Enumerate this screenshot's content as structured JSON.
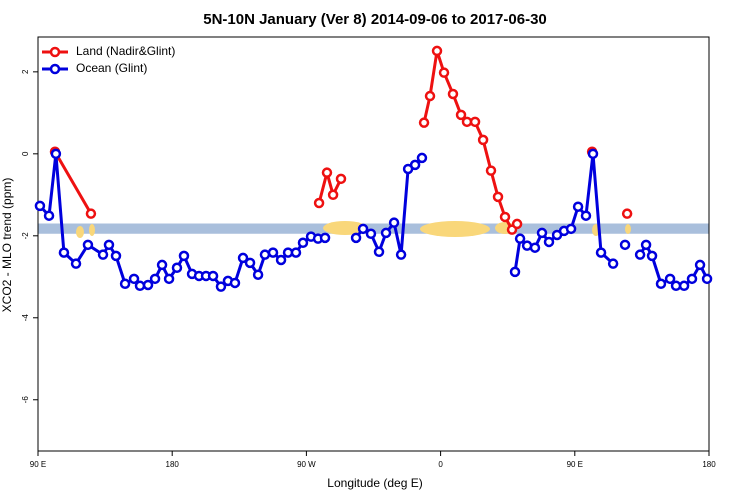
{
  "chart_data": {
    "type": "line",
    "title": "5N-10N January (Ver 8)   2014-09-06 to 2017-06-30",
    "xlabel": "Longitude (deg E)",
    "ylabel": "XCO2 - MLO trend (ppm)",
    "xlim": [
      90,
      540
    ],
    "ylim": [
      -7.25,
      2.85
    ],
    "xticks": [
      {
        "value": 90,
        "label": "90 E"
      },
      180,
      {
        "value": 270,
        "label": "90 W"
      },
      {
        "value": 360,
        "label": "0"
      },
      {
        "value": 450,
        "label": "90 E"
      },
      {
        "value": 540,
        "label": "180"
      }
    ],
    "yticks": [
      2,
      0,
      -2,
      -4,
      -6
    ],
    "legend": "top-left",
    "band": {
      "ylim": [
        -1.95,
        -1.7
      ],
      "color": "#a9bfdc"
    },
    "series": [
      {
        "name": "Land (Nadir&Glint)",
        "color": "#ee1111",
        "x": [
          101.4,
          125.5,
          null,
          278.5,
          283.8,
          287.9,
          293.2,
          null,
          348.9,
          352.9,
          357.6,
          362.3,
          368.3,
          373.7,
          377.7,
          383.1,
          388.5,
          393.8,
          398.5,
          403.2,
          407.9,
          411.3,
          null,
          461.6,
          null,
          485.1
        ],
        "values": [
          0.05,
          -1.46,
          null,
          -1.2,
          -0.46,
          -1.0,
          -0.61,
          null,
          0.76,
          1.41,
          2.51,
          1.98,
          1.46,
          0.95,
          0.78,
          0.78,
          0.34,
          -0.41,
          -1.05,
          -1.54,
          -1.85,
          -1.71,
          null,
          0.05,
          null,
          -1.46
        ]
      },
      {
        "name": "Ocean (Glint)",
        "color": "#0000dd",
        "x": [
          91.3,
          97.4,
          102,
          107.4,
          115.5,
          123.5,
          133.6,
          137.6,
          142.3,
          148.4,
          154.4,
          158.4,
          163.8,
          168.5,
          173.2,
          177.9,
          183.2,
          187.9,
          193.3,
          198,
          202.7,
          207.4,
          212.7,
          217.4,
          222.1,
          227.5,
          232.2,
          237.6,
          242.2,
          247.6,
          253,
          257.7,
          263,
          267.7,
          273.1,
          277.8,
          282.5,
          null,
          303.3,
          308,
          313.3,
          318.7,
          323.4,
          328.8,
          333.5,
          338.2,
          342.9,
          347.5,
          null,
          409.9,
          413.3,
          418,
          423.3,
          428,
          432.7,
          438.1,
          442.8,
          447.5,
          452.2,
          457.5,
          462.2,
          467.6,
          475.7,
          null,
          483.7,
          null,
          493.8,
          497.8,
          501.8,
          507.8,
          513.9,
          517.9,
          523.3,
          528.6,
          534,
          538.7
        ],
        "values": [
          -1.27,
          -1.51,
          0.0,
          -2.41,
          -2.68,
          -2.22,
          -2.46,
          -2.22,
          -2.49,
          -3.17,
          -3.05,
          -3.22,
          -3.2,
          -3.05,
          -2.71,
          -3.05,
          -2.78,
          -2.49,
          -2.93,
          -2.98,
          -2.98,
          -2.98,
          -3.24,
          -3.1,
          -3.15,
          -2.54,
          -2.66,
          -2.95,
          -2.46,
          -2.41,
          -2.59,
          -2.41,
          -2.41,
          -2.17,
          -2.02,
          -2.07,
          -2.05,
          null,
          -2.05,
          -1.83,
          -1.95,
          -2.39,
          -1.93,
          -1.68,
          -2.46,
          -0.37,
          -0.27,
          -0.1,
          null,
          -2.88,
          -2.07,
          -2.24,
          -2.29,
          -1.93,
          -2.15,
          -1.98,
          -1.88,
          -1.83,
          -1.29,
          -1.51,
          0.0,
          -2.41,
          -2.68,
          null,
          -2.22,
          null,
          -2.46,
          -2.22,
          -2.49,
          -3.17,
          -3.05,
          -3.22,
          -3.22,
          -3.05,
          -2.71,
          -3.05
        ]
      }
    ]
  }
}
